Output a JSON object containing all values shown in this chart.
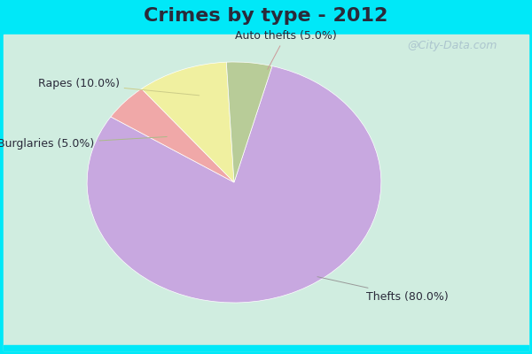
{
  "title": "Crimes by type - 2012",
  "slices": [
    {
      "label": "Thefts",
      "pct": 80.0,
      "color": "#c8a8e0"
    },
    {
      "label": "Auto thefts",
      "pct": 5.0,
      "color": "#f0a8a8"
    },
    {
      "label": "Rapes",
      "pct": 10.0,
      "color": "#f0f0a0"
    },
    {
      "label": "Burglaries",
      "pct": 5.0,
      "color": "#b8cc98"
    }
  ],
  "background_top": "#c8f0e0",
  "background_bottom": "#d8f0e8",
  "outer_bg_color": "#00e8f8",
  "title_fontsize": 16,
  "title_color": "#2a2a3a",
  "label_fontsize": 9,
  "watermark": "@City-Data.com"
}
